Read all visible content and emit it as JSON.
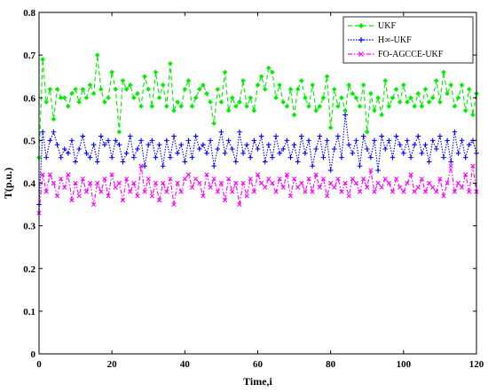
{
  "chart_data": {
    "type": "line",
    "title": "",
    "xlabel": "Time,i",
    "ylabel": "T(p.u.)",
    "xlim": [
      0,
      120
    ],
    "ylim": [
      0,
      0.8
    ],
    "xticks": [
      "0",
      "20",
      "40",
      "60",
      "80",
      "100",
      "120"
    ],
    "yticks": [
      "0",
      "0.1",
      "0.2",
      "0.3",
      "0.4",
      "0.5",
      "0.6",
      "0.7",
      "0.8"
    ],
    "grid": false,
    "legend_position": "top-right",
    "x": [
      0,
      1,
      2,
      3,
      4,
      5,
      6,
      7,
      8,
      9,
      10,
      11,
      12,
      13,
      14,
      15,
      16,
      17,
      18,
      19,
      20,
      21,
      22,
      23,
      24,
      25,
      26,
      27,
      28,
      29,
      30,
      31,
      32,
      33,
      34,
      35,
      36,
      37,
      38,
      39,
      40,
      41,
      42,
      43,
      44,
      45,
      46,
      47,
      48,
      49,
      50,
      51,
      52,
      53,
      54,
      55,
      56,
      57,
      58,
      59,
      60,
      61,
      62,
      63,
      64,
      65,
      66,
      67,
      68,
      69,
      70,
      71,
      72,
      73,
      74,
      75,
      76,
      77,
      78,
      79,
      80,
      81,
      82,
      83,
      84,
      85,
      86,
      87,
      88,
      89,
      90,
      91,
      92,
      93,
      94,
      95,
      96,
      97,
      98,
      99,
      100,
      101,
      102,
      103,
      104,
      105,
      106,
      107,
      108,
      109,
      110,
      111,
      112,
      113,
      114,
      115,
      116,
      117,
      118,
      119,
      120
    ],
    "series": [
      {
        "name": "UKF",
        "color": "#00ee00",
        "marker": "diamond",
        "values": [
          0.46,
          0.69,
          0.59,
          0.62,
          0.55,
          0.62,
          0.6,
          0.6,
          0.58,
          0.61,
          0.62,
          0.59,
          0.62,
          0.6,
          0.63,
          0.61,
          0.7,
          0.62,
          0.59,
          0.6,
          0.66,
          0.62,
          0.52,
          0.64,
          0.62,
          0.63,
          0.6,
          0.61,
          0.58,
          0.65,
          0.62,
          0.58,
          0.66,
          0.6,
          0.63,
          0.58,
          0.68,
          0.57,
          0.59,
          0.58,
          0.62,
          0.64,
          0.58,
          0.6,
          0.62,
          0.63,
          0.61,
          0.59,
          0.54,
          0.62,
          0.59,
          0.66,
          0.57,
          0.6,
          0.58,
          0.59,
          0.64,
          0.58,
          0.6,
          0.57,
          0.63,
          0.65,
          0.62,
          0.67,
          0.66,
          0.6,
          0.63,
          0.59,
          0.58,
          0.62,
          0.56,
          0.62,
          0.64,
          0.6,
          0.58,
          0.63,
          0.57,
          0.58,
          0.6,
          0.65,
          0.53,
          0.62,
          0.58,
          0.6,
          0.57,
          0.63,
          0.61,
          0.6,
          0.58,
          0.63,
          0.52,
          0.61,
          0.57,
          0.6,
          0.56,
          0.64,
          0.58,
          0.6,
          0.62,
          0.59,
          0.63,
          0.59,
          0.6,
          0.58,
          0.61,
          0.58,
          0.62,
          0.59,
          0.6,
          0.64,
          0.59,
          0.66,
          0.61,
          0.63,
          0.58,
          0.6,
          0.63,
          0.57,
          0.62,
          0.56,
          0.61
        ]
      },
      {
        "name": "H∞-UKF",
        "color": "#0000ff",
        "marker": "plus",
        "values": [
          0.35,
          0.52,
          0.46,
          0.5,
          0.52,
          0.49,
          0.46,
          0.48,
          0.47,
          0.5,
          0.45,
          0.48,
          0.51,
          0.47,
          0.46,
          0.49,
          0.45,
          0.51,
          0.49,
          0.5,
          0.46,
          0.5,
          0.49,
          0.45,
          0.47,
          0.51,
          0.46,
          0.48,
          0.5,
          0.44,
          0.49,
          0.5,
          0.46,
          0.49,
          0.44,
          0.5,
          0.46,
          0.51,
          0.47,
          0.49,
          0.45,
          0.5,
          0.46,
          0.51,
          0.48,
          0.49,
          0.47,
          0.5,
          0.44,
          0.48,
          0.52,
          0.47,
          0.5,
          0.48,
          0.45,
          0.52,
          0.47,
          0.49,
          0.46,
          0.5,
          0.48,
          0.51,
          0.45,
          0.49,
          0.46,
          0.51,
          0.47,
          0.48,
          0.5,
          0.46,
          0.49,
          0.45,
          0.51,
          0.47,
          0.5,
          0.44,
          0.48,
          0.51,
          0.46,
          0.5,
          0.43,
          0.48,
          0.51,
          0.46,
          0.56,
          0.49,
          0.47,
          0.5,
          0.44,
          0.51,
          0.48,
          0.46,
          0.5,
          0.43,
          0.51,
          0.48,
          0.5,
          0.46,
          0.51,
          0.49,
          0.47,
          0.5,
          0.46,
          0.49,
          0.51,
          0.47,
          0.49,
          0.45,
          0.5,
          0.48,
          0.51,
          0.46,
          0.5,
          0.45,
          0.52,
          0.47,
          0.5,
          0.46,
          0.49,
          0.5,
          0.47
        ]
      },
      {
        "name": "FO-AGCCE-UKF",
        "color": "#ff00ff",
        "marker": "x",
        "values": [
          0.33,
          0.42,
          0.38,
          0.42,
          0.4,
          0.37,
          0.41,
          0.39,
          0.42,
          0.36,
          0.4,
          0.37,
          0.41,
          0.38,
          0.4,
          0.35,
          0.4,
          0.38,
          0.41,
          0.37,
          0.42,
          0.39,
          0.4,
          0.36,
          0.41,
          0.38,
          0.4,
          0.37,
          0.44,
          0.38,
          0.41,
          0.37,
          0.4,
          0.36,
          0.4,
          0.38,
          0.41,
          0.35,
          0.4,
          0.38,
          0.41,
          0.42,
          0.39,
          0.41,
          0.4,
          0.37,
          0.42,
          0.39,
          0.41,
          0.38,
          0.4,
          0.36,
          0.41,
          0.38,
          0.4,
          0.35,
          0.4,
          0.37,
          0.41,
          0.38,
          0.42,
          0.4,
          0.39,
          0.41,
          0.4,
          0.38,
          0.41,
          0.39,
          0.42,
          0.37,
          0.41,
          0.39,
          0.4,
          0.38,
          0.41,
          0.38,
          0.42,
          0.39,
          0.41,
          0.37,
          0.4,
          0.39,
          0.41,
          0.38,
          0.4,
          0.37,
          0.41,
          0.4,
          0.38,
          0.41,
          0.39,
          0.43,
          0.38,
          0.4,
          0.39,
          0.41,
          0.4,
          0.38,
          0.41,
          0.39,
          0.38,
          0.4,
          0.42,
          0.38,
          0.39,
          0.41,
          0.38,
          0.4,
          0.39,
          0.38,
          0.41,
          0.37,
          0.4,
          0.44,
          0.38,
          0.4,
          0.39,
          0.42,
          0.38,
          0.44,
          0.38
        ]
      }
    ]
  }
}
